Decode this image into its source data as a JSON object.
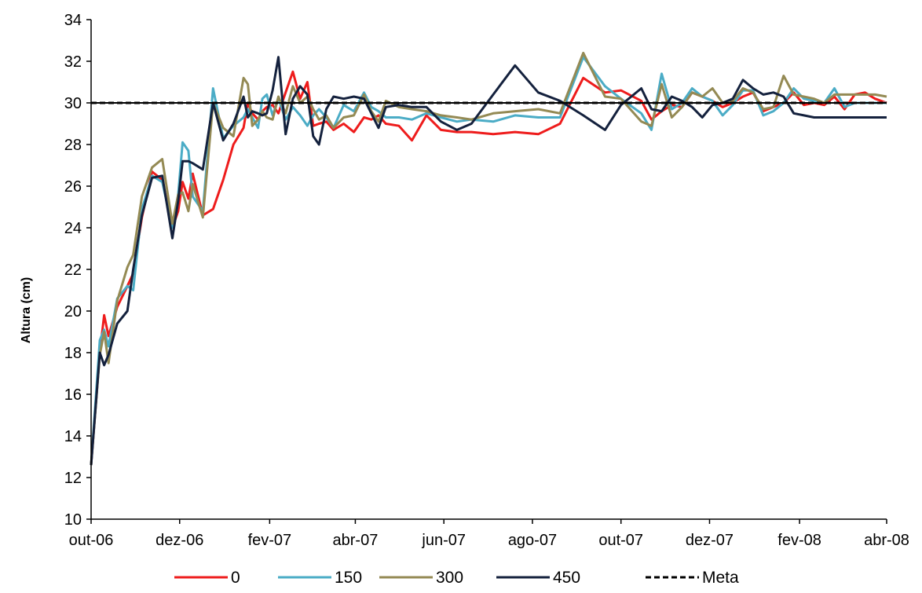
{
  "chart_data": {
    "type": "line",
    "title": "",
    "xlabel": "",
    "ylabel": "Altura (cm)",
    "ylim": [
      10,
      34
    ],
    "yticks": [
      10,
      12,
      14,
      16,
      18,
      20,
      22,
      24,
      26,
      28,
      30,
      32,
      34
    ],
    "xlim": [
      "2006-10-01",
      "2008-04-01"
    ],
    "xtick_labels": [
      "out-06",
      "dez-06",
      "fev-07",
      "abr-07",
      "jun-07",
      "ago-07",
      "out-07",
      "dez-07",
      "fev-08",
      "abr-08"
    ],
    "xtick_dates": [
      "2006-10-01",
      "2006-12-01",
      "2007-02-01",
      "2007-04-01",
      "2007-06-01",
      "2007-08-01",
      "2007-10-01",
      "2007-12-01",
      "2008-02-01",
      "2008-04-01"
    ],
    "grid": false,
    "legend_position": "bottom",
    "x": [
      "2006-10-01",
      "2006-10-07",
      "2006-10-10",
      "2006-10-13",
      "2006-10-19",
      "2006-10-26",
      "2006-10-30",
      "2006-11-05",
      "2006-11-12",
      "2006-11-19",
      "2006-11-26",
      "2006-11-30",
      "2006-12-03",
      "2006-12-07",
      "2006-12-10",
      "2006-12-17",
      "2006-12-24",
      "2006-12-31",
      "2007-01-07",
      "2007-01-14",
      "2007-01-17",
      "2007-01-20",
      "2007-01-24",
      "2007-01-27",
      "2007-01-30",
      "2007-02-03",
      "2007-02-07",
      "2007-02-12",
      "2007-02-17",
      "2007-02-22",
      "2007-02-27",
      "2007-03-03",
      "2007-03-07",
      "2007-03-12",
      "2007-03-17",
      "2007-03-24",
      "2007-03-31",
      "2007-04-07",
      "2007-04-12",
      "2007-04-17",
      "2007-04-22",
      "2007-05-01",
      "2007-05-10",
      "2007-05-20",
      "2007-05-30",
      "2007-06-10",
      "2007-06-20",
      "2007-07-05",
      "2007-07-20",
      "2007-08-05",
      "2007-08-20",
      "2007-09-05",
      "2007-09-20",
      "2007-10-01",
      "2007-10-15",
      "2007-10-22",
      "2007-10-29",
      "2007-11-05",
      "2007-11-12",
      "2007-11-19",
      "2007-11-26",
      "2007-12-03",
      "2007-12-10",
      "2007-12-17",
      "2007-12-24",
      "2007-12-31",
      "2008-01-07",
      "2008-01-14",
      "2008-01-21",
      "2008-01-28",
      "2008-02-04",
      "2008-02-11",
      "2008-02-18",
      "2008-02-25",
      "2008-03-03",
      "2008-03-10",
      "2008-03-17",
      "2008-03-24",
      "2008-04-01"
    ],
    "series": [
      {
        "name": "0",
        "color": "#ee1c1c",
        "dash": "solid",
        "values": [
          12.6,
          18.0,
          19.8,
          18.8,
          20.2,
          21.2,
          21.8,
          24.5,
          26.7,
          26.3,
          24.0,
          24.8,
          26.2,
          25.4,
          26.6,
          24.6,
          24.9,
          26.3,
          28.0,
          28.8,
          30.0,
          29.5,
          29.2,
          29.6,
          29.8,
          29.9,
          29.5,
          30.5,
          31.5,
          30.2,
          31.0,
          28.9,
          29.0,
          29.1,
          28.7,
          29.0,
          28.6,
          29.3,
          29.2,
          29.4,
          29.0,
          28.9,
          28.2,
          29.4,
          28.7,
          28.6,
          28.6,
          28.5,
          28.6,
          28.5,
          29.0,
          31.2,
          30.5,
          30.6,
          30.1,
          29.2,
          29.6,
          29.9,
          29.8,
          30.5,
          30.3,
          30.1,
          29.8,
          30.0,
          30.3,
          30.5,
          29.6,
          29.8,
          30.0,
          30.5,
          29.9,
          30.0,
          29.9,
          30.3,
          29.7,
          30.4,
          30.5,
          30.2,
          30.0
        ]
      },
      {
        "name": "150",
        "color": "#4bacc6",
        "dash": "solid",
        "values": [
          12.6,
          18.6,
          19.1,
          18.3,
          20.6,
          21.2,
          21.0,
          24.9,
          26.5,
          26.2,
          24.0,
          25.6,
          28.1,
          27.7,
          25.5,
          24.8,
          30.7,
          28.3,
          28.9,
          29.3,
          29.7,
          29.3,
          28.8,
          30.2,
          30.4,
          29.4,
          30.2,
          29.2,
          29.8,
          29.4,
          28.9,
          29.4,
          29.7,
          29.3,
          28.8,
          29.9,
          29.6,
          30.5,
          29.8,
          29.6,
          29.3,
          29.3,
          29.2,
          29.5,
          29.3,
          29.1,
          29.2,
          29.1,
          29.4,
          29.3,
          29.3,
          32.2,
          30.8,
          30.2,
          29.5,
          28.7,
          31.4,
          29.7,
          30.0,
          30.7,
          30.3,
          30.1,
          29.4,
          29.9,
          30.6,
          30.6,
          29.4,
          29.6,
          30.0,
          30.7,
          30.2,
          30.1,
          30.0,
          30.7,
          29.8,
          30.0,
          30.0,
          30.0,
          30.0
        ]
      },
      {
        "name": "300",
        "color": "#948a54",
        "dash": "solid",
        "values": [
          12.6,
          17.9,
          19.0,
          17.5,
          20.5,
          22.1,
          22.7,
          25.5,
          26.9,
          27.3,
          24.2,
          25.6,
          25.7,
          24.8,
          26.1,
          24.5,
          30.0,
          28.8,
          28.4,
          31.2,
          30.9,
          28.9,
          29.2,
          29.6,
          29.3,
          29.2,
          30.3,
          29.5,
          30.8,
          30.0,
          30.3,
          29.7,
          29.2,
          29.4,
          28.8,
          29.3,
          29.4,
          30.4,
          29.6,
          29.1,
          30.1,
          29.8,
          29.7,
          29.6,
          29.4,
          29.3,
          29.2,
          29.5,
          29.6,
          29.7,
          29.5,
          32.4,
          30.3,
          30.2,
          29.1,
          28.9,
          30.9,
          29.3,
          29.8,
          30.5,
          30.3,
          30.7,
          30.0,
          30.1,
          30.7,
          30.5,
          29.7,
          29.8,
          31.3,
          30.4,
          30.3,
          30.2,
          30.0,
          30.4,
          30.4,
          30.4,
          30.4,
          30.4,
          30.3
        ]
      },
      {
        "name": "450",
        "color": "#14213d",
        "dash": "solid",
        "values": [
          12.6,
          18.0,
          17.4,
          17.9,
          19.4,
          20.0,
          22.0,
          24.6,
          26.4,
          26.5,
          23.5,
          25.3,
          27.2,
          27.2,
          27.1,
          26.8,
          30.0,
          28.2,
          29.0,
          30.3,
          29.3,
          29.6,
          29.5,
          29.4,
          29.5,
          30.6,
          32.2,
          28.5,
          30.2,
          30.8,
          30.4,
          28.4,
          28.0,
          29.7,
          30.3,
          30.2,
          30.3,
          30.2,
          29.5,
          28.8,
          29.8,
          29.9,
          29.8,
          29.8,
          29.1,
          28.7,
          29.0,
          30.4,
          31.8,
          30.5,
          30.1,
          29.4,
          28.7,
          29.9,
          30.7,
          29.7,
          29.6,
          30.3,
          30.1,
          29.8,
          29.3,
          29.9,
          30.0,
          30.2,
          31.1,
          30.7,
          30.4,
          30.5,
          30.3,
          29.5,
          29.4,
          29.3,
          29.3,
          29.3,
          29.3,
          29.3,
          29.3,
          29.3,
          29.3
        ]
      },
      {
        "name": "Meta",
        "color": "#000000",
        "dash": "dashed",
        "values": [
          30,
          30,
          30,
          30,
          30,
          30,
          30,
          30,
          30,
          30,
          30,
          30,
          30,
          30,
          30,
          30,
          30,
          30,
          30,
          30,
          30,
          30,
          30,
          30,
          30,
          30,
          30,
          30,
          30,
          30,
          30,
          30,
          30,
          30,
          30,
          30,
          30,
          30,
          30,
          30,
          30,
          30,
          30,
          30,
          30,
          30,
          30,
          30,
          30,
          30,
          30,
          30,
          30,
          30,
          30,
          30,
          30,
          30,
          30,
          30,
          30,
          30,
          30,
          30,
          30,
          30,
          30,
          30,
          30,
          30,
          30,
          30,
          30,
          30,
          30,
          30,
          30,
          30,
          30
        ]
      }
    ],
    "reference_line": {
      "y": 30,
      "color": "#000000",
      "dash": "solid"
    }
  }
}
